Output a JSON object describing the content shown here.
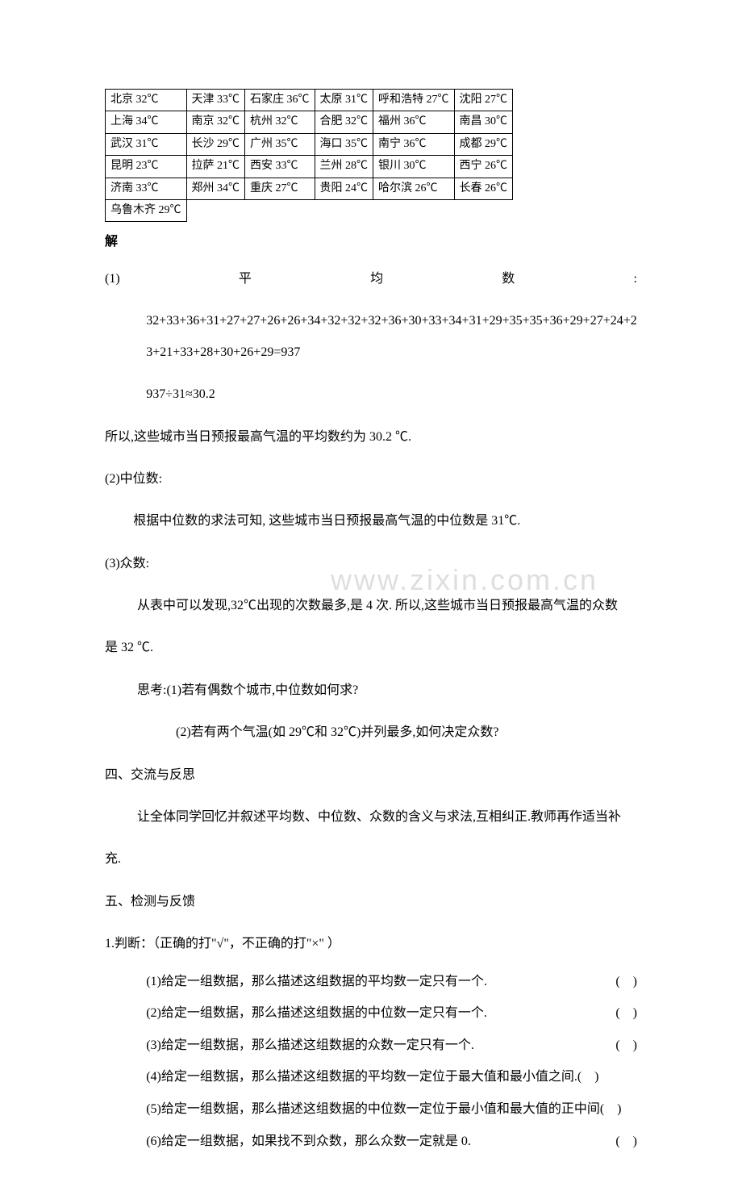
{
  "watermark": "www.zixin.com.cn",
  "table": {
    "rows": [
      [
        "北京 32℃",
        "天津 33℃",
        "石家庄 36℃",
        "太原 31℃",
        "呼和浩特 27℃",
        "沈阳 27℃"
      ],
      [
        "上海 34℃",
        "南京 32℃",
        "杭州 32℃",
        "合肥 32℃",
        "福州 36℃",
        "南昌 30℃"
      ],
      [
        "武汉 31℃",
        "长沙 29℃",
        "广州 35℃",
        "海口 35℃",
        "南宁 36℃",
        "成都 29℃"
      ],
      [
        "昆明 23℃",
        "拉萨 21℃",
        "西安 33℃",
        "兰州 28℃",
        "银川 30℃",
        "西宁 26℃"
      ],
      [
        "济南 33℃",
        "郑州 34℃",
        "重庆 27℃",
        "贵阳 24℃",
        "哈尔滨 26℃",
        "长春 26℃"
      ],
      [
        "乌鲁木齐 29℃",
        "",
        "",
        "",
        "",
        ""
      ]
    ]
  },
  "lines": {
    "jie": "解",
    "p1_label": "(1)",
    "p1_mid1": "平",
    "p1_mid2": "均",
    "p1_mid3": "数",
    "p1_end": ":",
    "p1_sum": "32+33+36+31+27+27+26+26+34+32+32+32+36+30+33+34+31+29+35+35+36+29+27+24+23+21+33+28+30+26+29=937",
    "p1_div": "937÷31≈30.2",
    "p1_res": "所以,这些城市当日预报最高气温的平均数约为 30.2 ℃.",
    "p2_label": "(2)中位数:",
    "p2_body": "根据中位数的求法可知, 这些城市当日预报最高气温的中位数是 31℃.",
    "p3_label": "(3)众数:",
    "p3_body": "从表中可以发现,32℃出现的次数最多,是 4 次. 所以,这些城市当日预报最高气温的众数",
    "p3_body2": "是 32 ℃.",
    "think1": "思考:(1)若有偶数个城市,中位数如何求?",
    "think2": "(2)若有两个气温(如 29℃和 32℃)并列最多,如何决定众数?",
    "sec4": "四、交流与反思",
    "sec4_body": "让全体同学回忆并叙述平均数、中位数、众数的含义与求法,互相纠正.教师再作适当补",
    "sec4_body2": "充.",
    "sec5": "五、检测与反馈",
    "j_header": "1.判断：（正确的打\"√\"，不正确的打\"×\" ）",
    "j1_text": "(1)给定一组数据，那么描述这组数据的平均数一定只有一个.",
    "j2_text": "(2)给定一组数据，那么描述这组数据的中位数一定只有一个.",
    "j3_text": "(3)给定一组数据，那么描述这组数据的众数一定只有一个.",
    "j4_text": "(4)给定一组数据，那么描述这组数据的平均数一定位于最大值和最小值之间.(　)",
    "j5_text": "(5)给定一组数据，那么描述这组数据的中位数一定位于最小值和最大值的正中间(　)",
    "j6_text": "(6)给定一组数据，如果找不到众数，那么众数一定就是 0.",
    "paren": "(　)"
  }
}
